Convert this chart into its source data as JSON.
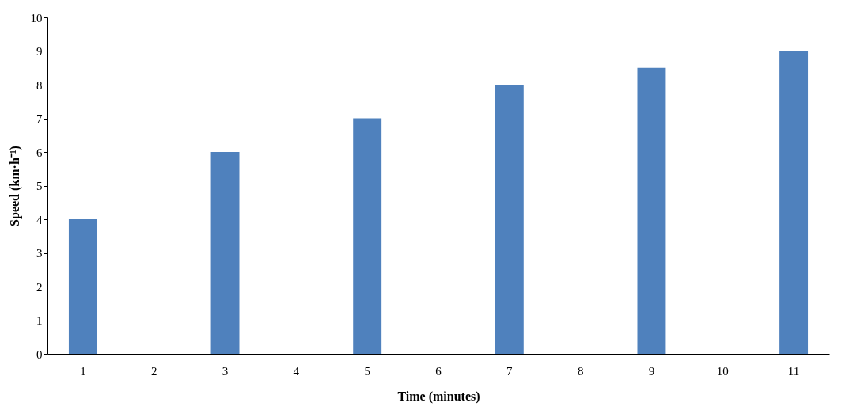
{
  "chart_data": {
    "type": "bar",
    "xlabel": "Time (minutes)",
    "ylabel": "Speed (km·h⁻¹)",
    "categories": [
      "1",
      "2",
      "3",
      "4",
      "5",
      "6",
      "7",
      "8",
      "9",
      "10",
      "11"
    ],
    "values": [
      4,
      null,
      6,
      null,
      7,
      null,
      8,
      null,
      8.5,
      null,
      9
    ],
    "color": "#4f81bd",
    "ylim": [
      0,
      10
    ],
    "yticks": [
      0,
      1,
      2,
      3,
      4,
      5,
      6,
      7,
      8,
      9,
      10
    ],
    "grid": false
  }
}
